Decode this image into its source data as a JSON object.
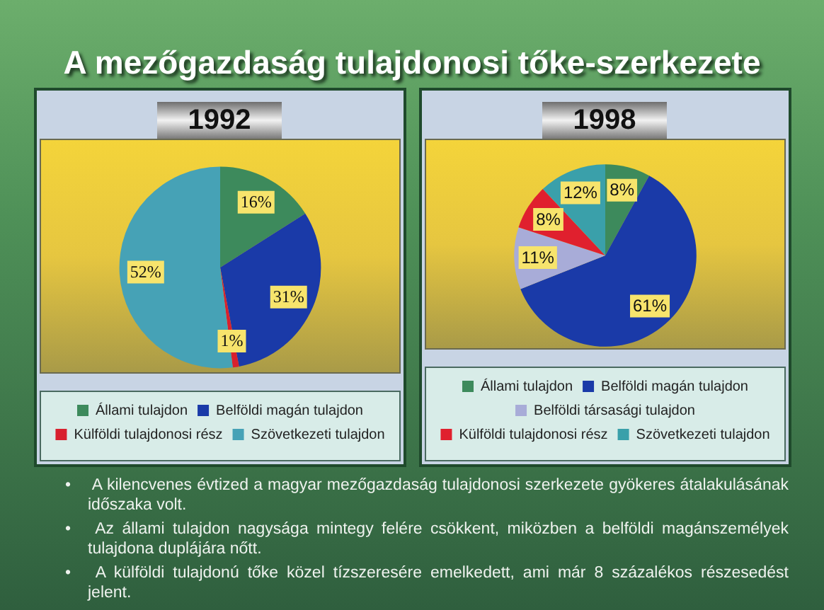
{
  "chart_data": [
    {
      "type": "other",
      "title": "A mezőgazdaság tulajdonosi tőke-szerkezete"
    },
    {
      "type": "pie",
      "title": "1992",
      "categories": [
        "Állami tulajdon",
        "Belföldi magán tulajdon",
        "Külföldi tulajdonosi rész",
        "Szövetkezeti tulajdon"
      ],
      "values": [
        16,
        31,
        1,
        52
      ],
      "colors": [
        "#3d8a5c",
        "#1a3aa8",
        "#d8202e",
        "#46a2b6"
      ],
      "value_labels": [
        "16%",
        "31%",
        "1%",
        "52%"
      ],
      "legend": "bottom"
    },
    {
      "type": "pie",
      "title": "1998",
      "categories": [
        "Állami tulajdon",
        "Belföldi magán tulajdon",
        "Belföldi társasági tulajdon",
        "Külföldi tulajdonosi rész",
        "Szövetkezeti tulajdon"
      ],
      "values": [
        8,
        61,
        11,
        8,
        12
      ],
      "colors": [
        "#3d8a5c",
        "#1a3aa8",
        "#a8acd8",
        "#e0202e",
        "#3aa0aa"
      ],
      "value_labels": [
        "8%",
        "61%",
        "11%",
        "8%",
        "12%"
      ],
      "legend": "bottom"
    },
    {
      "type": "other",
      "annotations": [
        "• A kilencvenes évtized a magyar mezőgazdaság tulajdonosi szerkezete gyökeres átalakulásának időszaka volt.",
        "• Az állami tulajdon nagysága mintegy felére csökkent, miközben a belföldi magánszemélyek tulajdona duplájára nőtt.",
        "• A külföldi tulajdonú tőke közel tízszeresére emelkedett, ami már 8 százalékos részesedést jelent."
      ]
    }
  ]
}
